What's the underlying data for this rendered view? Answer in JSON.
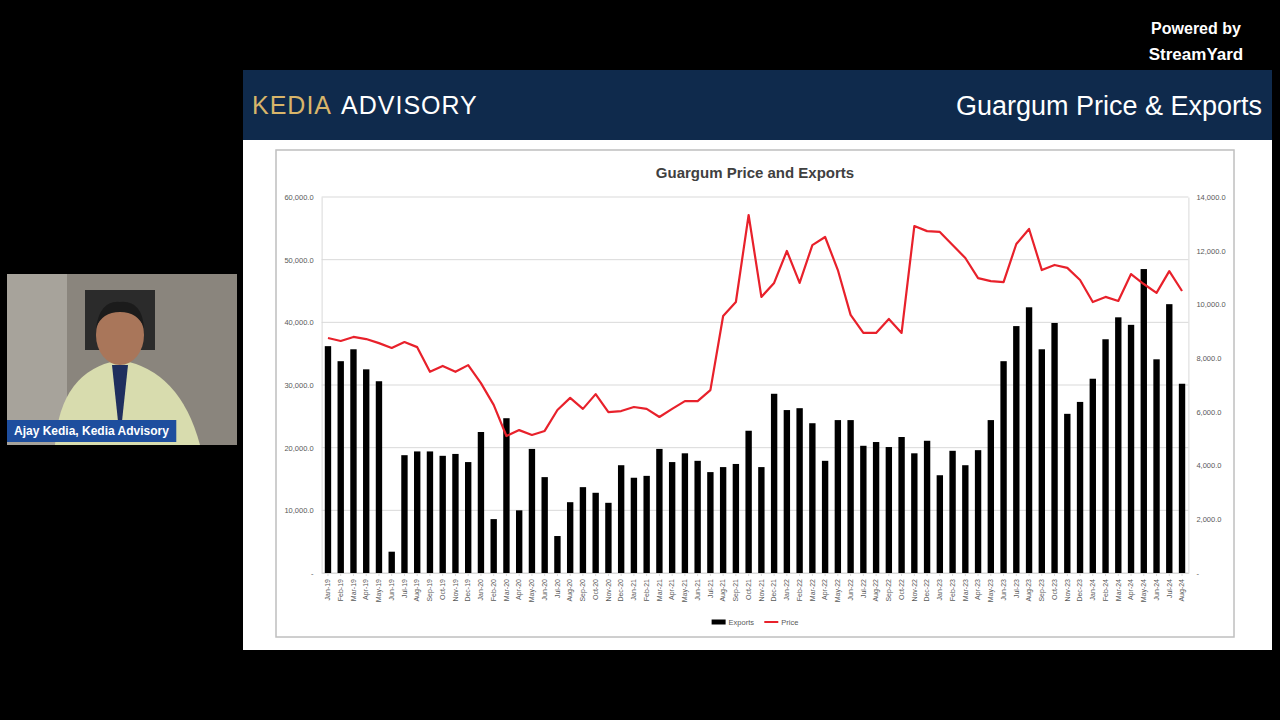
{
  "page": {
    "brand": [
      "KEDIA",
      "ADVISORY"
    ],
    "slide_title": "Guargum Price & Exports",
    "powered_by": "Powered by",
    "platform": "StreamYard",
    "presenter": "Ajay Kedia, Kedia Advisory"
  },
  "chart_data": {
    "type": "bar",
    "title": "Guargum Price and Exports",
    "categories": [
      "Jan-19",
      "Feb-19",
      "Mar-19",
      "Apr-19",
      "May-19",
      "Jun-19",
      "Jul-19",
      "Aug-19",
      "Sep-19",
      "Oct-19",
      "Nov-19",
      "Dec-19",
      "Jan-20",
      "Feb-20",
      "Mar-20",
      "Apr-20",
      "May-20",
      "Jun-20",
      "Jul-20",
      "Aug-20",
      "Sep-20",
      "Oct-20",
      "Nov-20",
      "Dec-20",
      "Jan-21",
      "Feb-21",
      "Mar-21",
      "Apr-21",
      "May-21",
      "Jun-21",
      "Jul-21",
      "Aug-21",
      "Sep-21",
      "Oct-21",
      "Nov-21",
      "Dec-21",
      "Jan-22",
      "Feb-22",
      "Mar-22",
      "Apr-22",
      "May-22",
      "Jun-22",
      "Jul-22",
      "Aug-22",
      "Sep-22",
      "Oct-22",
      "Nov-22",
      "Dec-22",
      "Jan-23",
      "Feb-23",
      "Mar-23",
      "Apr-23",
      "May-23",
      "Jun-23",
      "Jul-23",
      "Aug-23",
      "Sep-23",
      "Oct-23",
      "Nov-23",
      "Dec-23",
      "Jan-24",
      "Feb-24",
      "Mar-24",
      "Apr-24",
      "May-24",
      "Jun-24",
      "Jul-24",
      "Aug-24"
    ],
    "series": [
      {
        "name": "Exports",
        "type": "bar",
        "color": "#000000",
        "values": [
          36200,
          33800,
          35700,
          32500,
          30600,
          3400,
          18800,
          19400,
          19400,
          18700,
          19000,
          17700,
          22500,
          8600,
          24700,
          10000,
          19800,
          15300,
          5900,
          11300,
          13700,
          12800,
          11200,
          17200,
          15200,
          15500,
          19800,
          17700,
          19100,
          17900,
          16100,
          16900,
          17400,
          22700,
          16900,
          28600,
          26000,
          26300,
          23900,
          17900,
          24400,
          24400,
          20300,
          20900,
          20100,
          21700,
          19100,
          21100,
          15600,
          19500,
          17200,
          19600,
          24400,
          33800,
          39400,
          42400,
          35700,
          39900,
          25400,
          27300,
          31000,
          37300,
          40800,
          39600,
          48500,
          34100,
          42900,
          30200
        ]
      },
      {
        "name": "Price",
        "type": "line",
        "color": "#e8212b",
        "axis": "y2",
        "values": [
          8750,
          8640,
          8790,
          8710,
          8560,
          8380,
          8600,
          8410,
          7490,
          7710,
          7490,
          7740,
          7070,
          6260,
          5100,
          5320,
          5140,
          5290,
          6070,
          6520,
          6110,
          6660,
          5990,
          6030,
          6180,
          6110,
          5810,
          6110,
          6400,
          6400,
          6810,
          9570,
          10090,
          13330,
          10280,
          10800,
          11990,
          10800,
          12210,
          12510,
          11280,
          9610,
          8940,
          8940,
          9460,
          8940,
          12920,
          12730,
          12700,
          12210,
          11730,
          10980,
          10870,
          10830,
          12250,
          12810,
          11280,
          11470,
          11360,
          10910,
          10090,
          10280,
          10130,
          11130,
          10760,
          10430,
          11240,
          10500
        ]
      }
    ],
    "ylim": [
      0,
      60000
    ],
    "yticks": [
      {
        "value": 0,
        "label": "-"
      },
      {
        "value": 10000,
        "label": "10,000.0"
      },
      {
        "value": 20000,
        "label": "20,000.0"
      },
      {
        "value": 30000,
        "label": "30,000.0"
      },
      {
        "value": 40000,
        "label": "40,000.0"
      },
      {
        "value": 50000,
        "label": "50,000.0"
      },
      {
        "value": 60000,
        "label": "60,000.0"
      }
    ],
    "y2lim": [
      0,
      14000
    ],
    "y2ticks": [
      {
        "value": 0,
        "label": "-"
      },
      {
        "value": 2000,
        "label": "2,000.0"
      },
      {
        "value": 4000,
        "label": "4,000.0"
      },
      {
        "value": 6000,
        "label": "6,000.0"
      },
      {
        "value": 8000,
        "label": "8,000.0"
      },
      {
        "value": 10000,
        "label": "10,000.0"
      },
      {
        "value": 12000,
        "label": "12,000.0"
      },
      {
        "value": 14000,
        "label": "14,000.0"
      }
    ],
    "grid": true,
    "legend": "bottom"
  }
}
